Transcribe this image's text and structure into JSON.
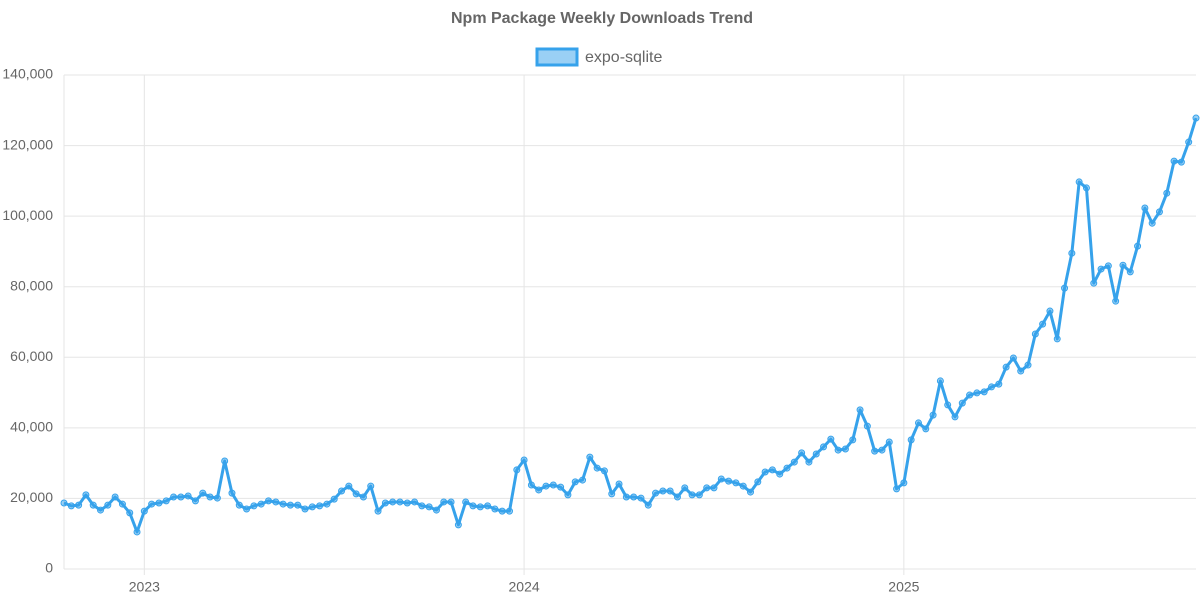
{
  "chart_data": {
    "type": "line",
    "title": "Npm Package Weekly Downloads Trend",
    "categories": [
      null,
      null,
      null,
      null,
      null,
      null,
      null,
      null,
      null,
      null,
      null,
      "2023",
      null,
      null,
      null,
      null,
      null,
      null,
      null,
      null,
      null,
      null,
      null,
      null,
      null,
      null,
      null,
      null,
      null,
      null,
      null,
      null,
      null,
      null,
      null,
      null,
      null,
      null,
      null,
      null,
      null,
      null,
      null,
      null,
      null,
      null,
      null,
      null,
      null,
      null,
      null,
      null,
      null,
      null,
      null,
      null,
      null,
      null,
      null,
      null,
      null,
      null,
      null,
      "2024",
      null,
      null,
      null,
      null,
      null,
      null,
      null,
      null,
      null,
      null,
      null,
      null,
      null,
      null,
      null,
      null,
      null,
      null,
      null,
      null,
      null,
      null,
      null,
      null,
      null,
      null,
      null,
      null,
      null,
      null,
      null,
      null,
      null,
      null,
      null,
      null,
      null,
      null,
      null,
      null,
      null,
      null,
      null,
      null,
      null,
      null,
      null,
      null,
      null,
      null,
      null,
      "2025",
      null,
      null,
      null,
      null,
      null,
      null,
      null,
      null,
      null,
      null,
      null,
      null,
      null,
      null,
      null,
      null,
      null,
      null,
      null,
      null,
      null,
      null,
      null,
      null,
      null,
      null,
      null,
      null,
      null,
      null,
      null,
      null,
      null,
      null,
      null,
      null,
      null,
      null,
      null,
      null
    ],
    "series": [
      {
        "name": "expo-sqlite",
        "color": "#36a2eb",
        "values": [
          18700,
          17900,
          18100,
          21000,
          18100,
          16700,
          18100,
          20400,
          18400,
          15900,
          10500,
          16400,
          18400,
          18700,
          19300,
          20400,
          20400,
          20700,
          19300,
          21500,
          20400,
          20100,
          30600,
          21500,
          18100,
          17000,
          17900,
          18400,
          19300,
          19000,
          18400,
          18100,
          18100,
          17000,
          17600,
          17900,
          18400,
          19800,
          22100,
          23500,
          21300,
          20400,
          23500,
          16400,
          18700,
          19000,
          19000,
          18700,
          19000,
          17900,
          17600,
          16700,
          19000,
          19000,
          12500,
          19000,
          17900,
          17600,
          17900,
          17000,
          16400,
          16400,
          28100,
          30900,
          23800,
          22400,
          23500,
          23800,
          23200,
          21000,
          24700,
          25200,
          31700,
          28600,
          27800,
          21300,
          24100,
          20400,
          20400,
          20100,
          18100,
          21500,
          22100,
          22100,
          20400,
          23000,
          21000,
          21000,
          23000,
          23000,
          25500,
          24900,
          24400,
          23500,
          21800,
          24700,
          27500,
          28100,
          26900,
          28600,
          30300,
          32900,
          30300,
          32600,
          34600,
          36800,
          33700,
          34000,
          36600,
          45100,
          40500,
          33400,
          33700,
          36000,
          22700,
          24400,
          36600,
          41400,
          39700,
          43600,
          53300,
          46500,
          43100,
          47000,
          49300,
          49900,
          50200,
          51600,
          52400,
          57200,
          59800,
          56100,
          57800,
          66600,
          69400,
          73100,
          65200,
          79600,
          89500,
          109700,
          108000,
          81000,
          85000,
          85900,
          75900,
          86100,
          84200,
          91500,
          102300,
          98000,
          101200,
          106500,
          115600,
          115300,
          121000,
          127800
        ]
      }
    ],
    "ylim": [
      0,
      140000
    ],
    "yticks": [
      0,
      {
        "value": 20000,
        "label": "20,000"
      },
      {
        "value": 40000,
        "label": "40,000"
      },
      {
        "value": 60000,
        "label": "60,000"
      },
      {
        "value": 80000,
        "label": "80,000"
      },
      {
        "value": 100000,
        "label": "100,000"
      },
      {
        "value": 120000,
        "label": "120,000"
      },
      {
        "value": 140000,
        "label": "140,000"
      }
    ],
    "grid": true,
    "legend": "top"
  }
}
